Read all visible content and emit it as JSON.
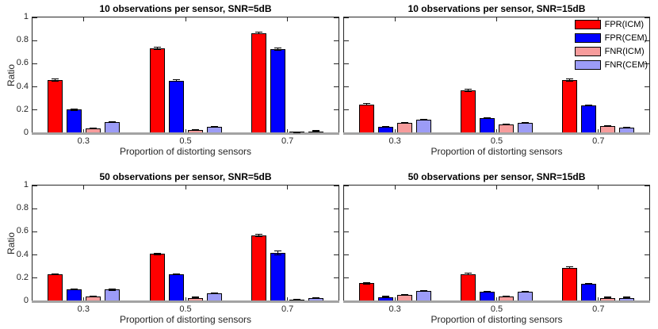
{
  "figure": {
    "background": "#ffffff",
    "axis_color": "#262626",
    "baseline_color": "#a3a3a3",
    "xlabel": "Proportion of distorting sensors",
    "ylabel": "Ratio",
    "grid": false,
    "legend_position": "top-right of SNR=15dB top subplot"
  },
  "legend": {
    "items": [
      {
        "label": "FPR(ICM)",
        "color": "#ff0000"
      },
      {
        "label": "FPR(CEM)",
        "color": "#0000ff"
      },
      {
        "label": "FNR(ICM)",
        "color": "#f79c9c"
      },
      {
        "label": "FNR(CEM)",
        "color": "#9c9cf7"
      }
    ]
  },
  "chart_data": [
    {
      "type": "bar",
      "title": "10 observations per sensor, SNR=5dB",
      "categories": [
        "0.3",
        "0.5",
        "0.7"
      ],
      "xlabel": "Proportion of distorting sensors",
      "ylabel": "Ratio",
      "ylim": [
        0,
        1
      ],
      "ytick_values": [
        0,
        0.2,
        0.4,
        0.6,
        0.8,
        1
      ],
      "ytick_labels": [
        "0",
        "0.2",
        "0.4",
        "0.6",
        "0.8",
        "1"
      ],
      "show_ytick_labels": true,
      "series": [
        {
          "name": "FPR(ICM)",
          "color": "#ff0000",
          "values": [
            0.46,
            0.735,
            0.865
          ],
          "errors": [
            0.012,
            0.013,
            0.01
          ]
        },
        {
          "name": "FPR(CEM)",
          "color": "#0000ff",
          "values": [
            0.205,
            0.455,
            0.725
          ],
          "errors": [
            0.01,
            0.012,
            0.012
          ]
        },
        {
          "name": "FNR(ICM)",
          "color": "#f79c9c",
          "values": [
            0.04,
            0.025,
            0.005
          ],
          "errors": [
            0.008,
            0.005,
            0.003
          ]
        },
        {
          "name": "FNR(CEM)",
          "color": "#9c9cf7",
          "values": [
            0.095,
            0.055,
            0.015
          ],
          "errors": [
            0.008,
            0.006,
            0.004
          ]
        }
      ]
    },
    {
      "type": "bar",
      "title": "10 observations per sensor, SNR=15dB",
      "categories": [
        "0.3",
        "0.5",
        "0.7"
      ],
      "xlabel": "Proportion of distorting sensors",
      "ylim": [
        0,
        1
      ],
      "ytick_values": [
        0,
        0.2,
        0.4,
        0.6,
        0.8,
        1
      ],
      "ytick_labels": [
        "0",
        "0.2",
        "0.4",
        "0.6",
        "0.8",
        "1"
      ],
      "show_ytick_labels": false,
      "series": [
        {
          "name": "FPR(ICM)",
          "color": "#ff0000",
          "values": [
            0.25,
            0.37,
            0.46
          ],
          "errors": [
            0.012,
            0.014,
            0.014
          ]
        },
        {
          "name": "FPR(CEM)",
          "color": "#0000ff",
          "values": [
            0.055,
            0.13,
            0.24
          ],
          "errors": [
            0.006,
            0.008,
            0.01
          ]
        },
        {
          "name": "FNR(ICM)",
          "color": "#f79c9c",
          "values": [
            0.09,
            0.075,
            0.06
          ],
          "errors": [
            0.006,
            0.006,
            0.005
          ]
        },
        {
          "name": "FNR(CEM)",
          "color": "#9c9cf7",
          "values": [
            0.115,
            0.09,
            0.045
          ],
          "errors": [
            0.006,
            0.006,
            0.004
          ]
        }
      ]
    },
    {
      "type": "bar",
      "title": "50 observations per sensor, SNR=5dB",
      "categories": [
        "0.3",
        "0.5",
        "0.7"
      ],
      "xlabel": "Proportion of distorting sensors",
      "ylabel": "Ratio",
      "ylim": [
        0,
        1
      ],
      "ytick_values": [
        0,
        0.2,
        0.4,
        0.6,
        0.8,
        1
      ],
      "ytick_labels": [
        "0",
        "0.2",
        "0.4",
        "0.6",
        "0.8",
        "1"
      ],
      "show_ytick_labels": true,
      "series": [
        {
          "name": "FPR(ICM)",
          "color": "#ff0000",
          "values": [
            0.235,
            0.41,
            0.57
          ],
          "errors": [
            0.008,
            0.01,
            0.015
          ]
        },
        {
          "name": "FPR(CEM)",
          "color": "#0000ff",
          "values": [
            0.1,
            0.235,
            0.42
          ],
          "errors": [
            0.006,
            0.008,
            0.02
          ]
        },
        {
          "name": "FNR(ICM)",
          "color": "#f79c9c",
          "values": [
            0.04,
            0.03,
            0.01
          ],
          "errors": [
            0.004,
            0.004,
            0.003
          ]
        },
        {
          "name": "FNR(CEM)",
          "color": "#9c9cf7",
          "values": [
            0.1,
            0.07,
            0.025
          ],
          "errors": [
            0.008,
            0.005,
            0.004
          ]
        }
      ]
    },
    {
      "type": "bar",
      "title": "50 observations per sensor, SNR=15dB",
      "categories": [
        "0.3",
        "0.5",
        "0.7"
      ],
      "xlabel": "Proportion of distorting sensors",
      "ylim": [
        0,
        1
      ],
      "ytick_values": [
        0,
        0.2,
        0.4,
        0.6,
        0.8,
        1
      ],
      "ytick_labels": [
        "0",
        "0.2",
        "0.4",
        "0.6",
        "0.8",
        "1"
      ],
      "show_ytick_labels": false,
      "series": [
        {
          "name": "FPR(ICM)",
          "color": "#ff0000",
          "values": [
            0.155,
            0.235,
            0.29
          ],
          "errors": [
            0.008,
            0.012,
            0.012
          ]
        },
        {
          "name": "FPR(CEM)",
          "color": "#0000ff",
          "values": [
            0.035,
            0.08,
            0.15
          ],
          "errors": [
            0.004,
            0.006,
            0.008
          ]
        },
        {
          "name": "FNR(ICM)",
          "color": "#f79c9c",
          "values": [
            0.055,
            0.04,
            0.03
          ],
          "errors": [
            0.005,
            0.004,
            0.003
          ]
        },
        {
          "name": "FNR(CEM)",
          "color": "#9c9cf7",
          "values": [
            0.09,
            0.08,
            0.03
          ],
          "errors": [
            0.005,
            0.005,
            0.004
          ]
        }
      ]
    }
  ]
}
